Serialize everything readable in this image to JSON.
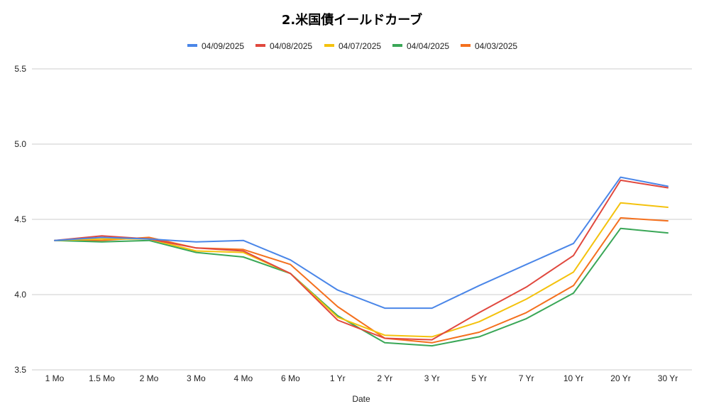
{
  "chart_data": {
    "type": "line",
    "title": "2.米国債イールドカーブ",
    "xlabel": "Date",
    "ylabel": "",
    "ylim": [
      3.5,
      5.5
    ],
    "yticks": [
      "3.5",
      "4.0",
      "4.5",
      "5.0",
      "5.5"
    ],
    "grid": true,
    "legend_position": "top",
    "categories": [
      "1 Mo",
      "1.5 Mo",
      "2 Mo",
      "3 Mo",
      "4 Mo",
      "6 Mo",
      "1 Yr",
      "2 Yr",
      "3 Yr",
      "5 Yr",
      "7 Yr",
      "10 Yr",
      "20 Yr",
      "30 Yr"
    ],
    "series": [
      {
        "name": "04/09/2025",
        "color": "#4a86e8",
        "values": [
          4.36,
          4.38,
          4.37,
          4.35,
          4.36,
          4.23,
          4.03,
          3.91,
          3.91,
          4.06,
          4.2,
          4.34,
          4.78,
          4.72
        ]
      },
      {
        "name": "04/08/2025",
        "color": "#e0483e",
        "values": [
          4.36,
          4.39,
          4.37,
          4.31,
          4.29,
          4.14,
          3.83,
          3.71,
          3.7,
          3.88,
          4.05,
          4.26,
          4.76,
          4.71
        ]
      },
      {
        "name": "04/07/2025",
        "color": "#f4c20d",
        "values": [
          4.36,
          4.37,
          4.37,
          4.29,
          4.28,
          4.14,
          3.85,
          3.73,
          3.72,
          3.82,
          3.97,
          4.15,
          4.61,
          4.58
        ]
      },
      {
        "name": "04/04/2025",
        "color": "#3aa757",
        "values": [
          4.36,
          4.35,
          4.36,
          4.28,
          4.25,
          4.14,
          3.86,
          3.68,
          3.66,
          3.72,
          3.84,
          4.01,
          4.44,
          4.41
        ]
      },
      {
        "name": "04/03/2025",
        "color": "#f4701e",
        "values": [
          4.36,
          4.36,
          4.38,
          4.31,
          4.3,
          4.2,
          3.92,
          3.71,
          3.68,
          3.75,
          3.88,
          4.06,
          4.51,
          4.49
        ]
      }
    ]
  }
}
